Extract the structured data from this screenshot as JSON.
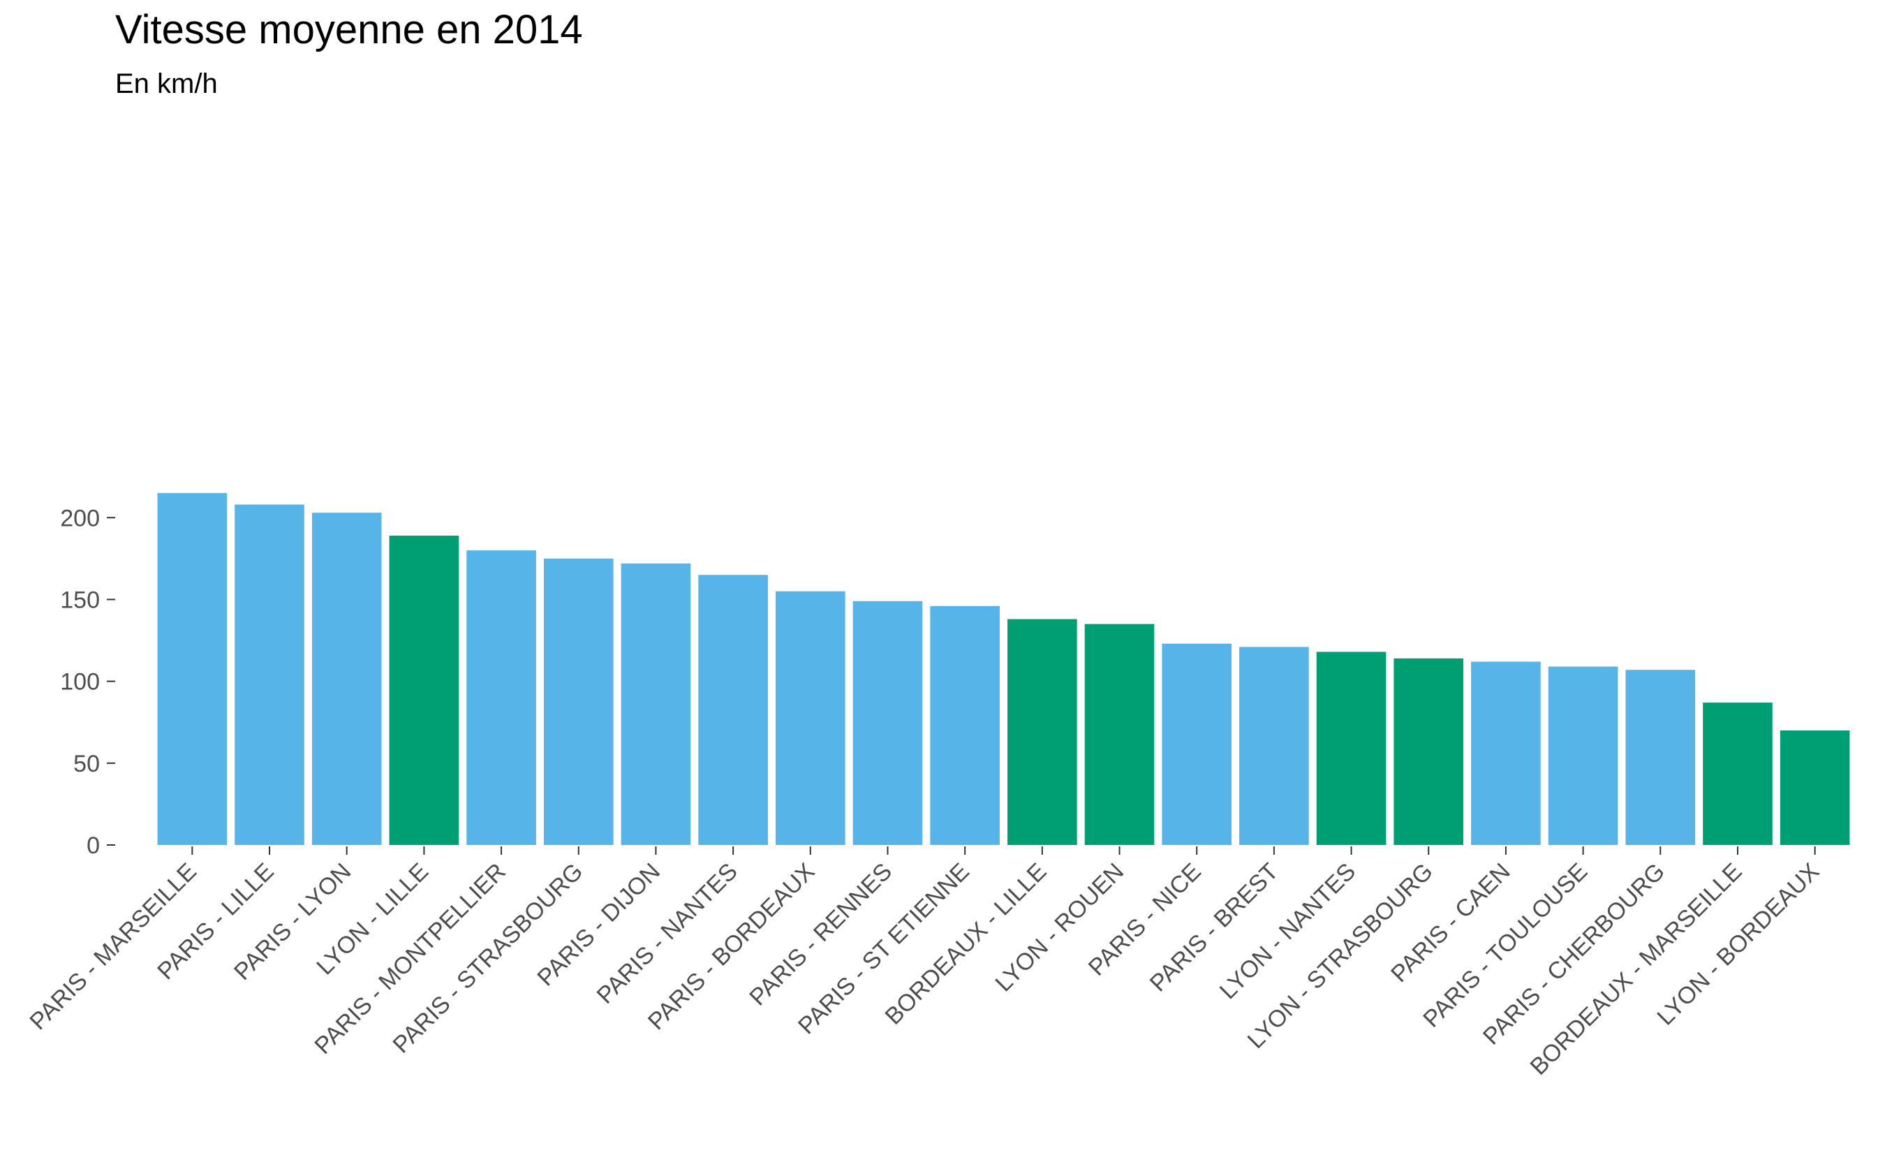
{
  "chart_data": {
    "type": "bar",
    "title": "Vitesse moyenne en 2014",
    "subtitle": "En km/h",
    "xlabel": "",
    "ylabel": "",
    "ylim": [
      0,
      222
    ],
    "yticks": [
      0,
      50,
      100,
      150,
      200
    ],
    "grid": false,
    "legend": "none",
    "colors": {
      "paris": "#56B4E9",
      "other": "#009E73"
    },
    "categories": [
      "PARIS - MARSEILLE",
      "PARIS - LILLE",
      "PARIS - LYON",
      "LYON - LILLE",
      "PARIS - MONTPELLIER",
      "PARIS - STRASBOURG",
      "PARIS - DIJON",
      "PARIS - NANTES",
      "PARIS - BORDEAUX",
      "PARIS - RENNES",
      "PARIS - ST ETIENNE",
      "BORDEAUX - LILLE",
      "LYON - ROUEN",
      "PARIS - NICE",
      "PARIS - BREST",
      "LYON - NANTES",
      "LYON - STRASBOURG",
      "PARIS - CAEN",
      "PARIS - TOULOUSE",
      "PARIS - CHERBOURG",
      "BORDEAUX - MARSEILLE",
      "LYON - BORDEAUX"
    ],
    "values": [
      215,
      208,
      203,
      189,
      180,
      175,
      172,
      165,
      155,
      149,
      146,
      138,
      135,
      123,
      121,
      118,
      114,
      112,
      109,
      107,
      87,
      70
    ],
    "groups": [
      "paris",
      "paris",
      "paris",
      "other",
      "paris",
      "paris",
      "paris",
      "paris",
      "paris",
      "paris",
      "paris",
      "other",
      "other",
      "paris",
      "paris",
      "other",
      "other",
      "paris",
      "paris",
      "paris",
      "other",
      "other"
    ]
  }
}
